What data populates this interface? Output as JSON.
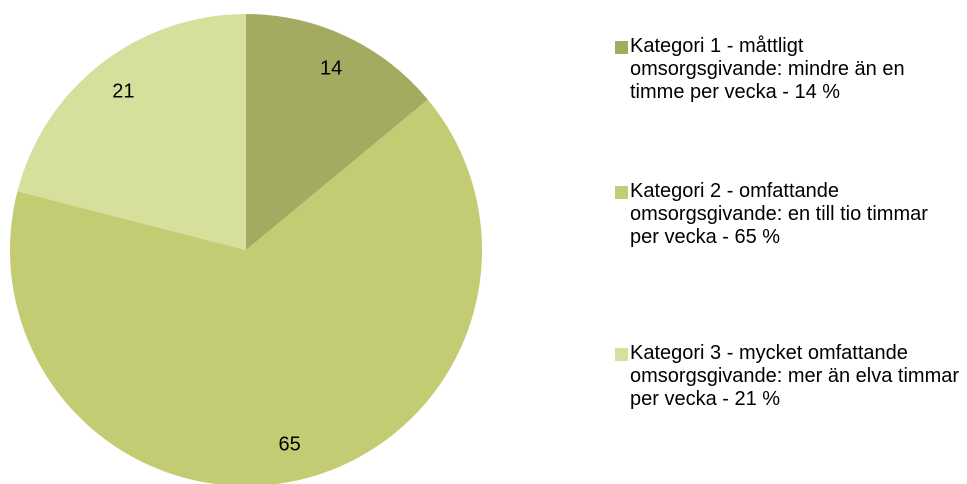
{
  "chart_data": {
    "type": "pie",
    "categories": [
      "Kategori 1 - måttligt omsorgsgivande: mindre än en timme per vecka - 14 %",
      "Kategori 2 - omfattande omsorgsgivande: en till tio timmar per vecka - 65 %",
      "Kategori 3 - mycket omfattande omsorgsgivande: mer än elva timmar per vecka - 21 %"
    ],
    "values": [
      14,
      65,
      21
    ],
    "colors": [
      "#a4ab61",
      "#c3cb73",
      "#d6df9b"
    ],
    "legend": "right"
  }
}
